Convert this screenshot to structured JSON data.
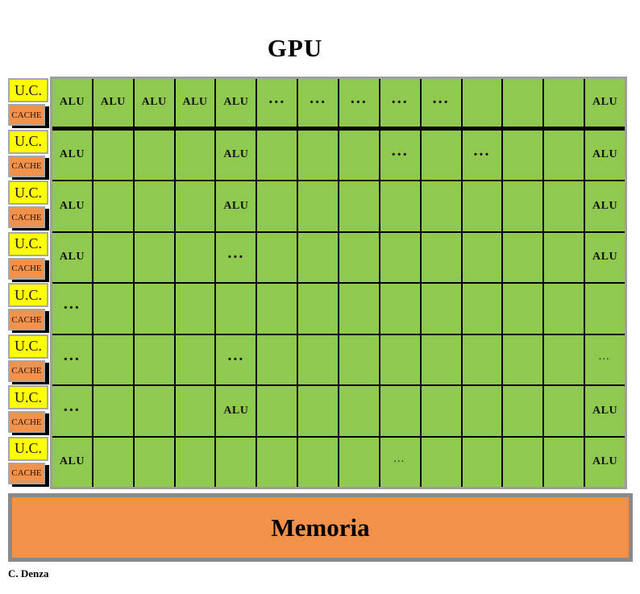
{
  "title": "GPU",
  "caption": "C. Denza",
  "memory": {
    "label": "Memoria"
  },
  "controllers": {
    "uc_label": "U.C.",
    "cache_label": "CACHE",
    "count": 8
  },
  "grid": {
    "columns": 14,
    "row_count": 8,
    "alu_label": "ALU",
    "dots_bold": "...",
    "dots_light": "…",
    "rows": [
      [
        "ALU",
        "ALU",
        "ALU",
        "ALU",
        "ALU",
        "...",
        "...",
        "...",
        "...",
        "...",
        "",
        "",
        "",
        "ALU"
      ],
      [
        "ALU",
        "",
        "",
        "",
        "ALU",
        "",
        "",
        "",
        "...",
        "",
        "...",
        "",
        "",
        "ALU"
      ],
      [
        "ALU",
        "",
        "",
        "",
        "ALU",
        "",
        "",
        "",
        "",
        "",
        "",
        "",
        "",
        "ALU"
      ],
      [
        "ALU",
        "",
        "",
        "",
        "...",
        "",
        "",
        "",
        "",
        "",
        "",
        "",
        "",
        "ALU"
      ],
      [
        "...",
        "",
        "",
        "",
        "",
        "",
        "",
        "",
        "",
        "",
        "",
        "",
        "",
        ""
      ],
      [
        "...",
        "",
        "",
        "",
        "...",
        "",
        "",
        "",
        "",
        "",
        "",
        "",
        "",
        "…"
      ],
      [
        "...",
        "",
        "",
        "",
        "ALU",
        "",
        "",
        "",
        "",
        "",
        "",
        "",
        "",
        "ALU"
      ],
      [
        "ALU",
        "",
        "",
        "",
        "",
        "",
        "",
        "",
        "…",
        "",
        "",
        "",
        "",
        "ALU"
      ]
    ]
  },
  "colors": {
    "cell_green": "#90C94F",
    "uc_yellow": "#FFFF00",
    "cache_orange": "#F2924A",
    "memory_orange": "#F2924A",
    "grid_line": "#000000",
    "outer_border_gray": "#9E9E9E"
  }
}
